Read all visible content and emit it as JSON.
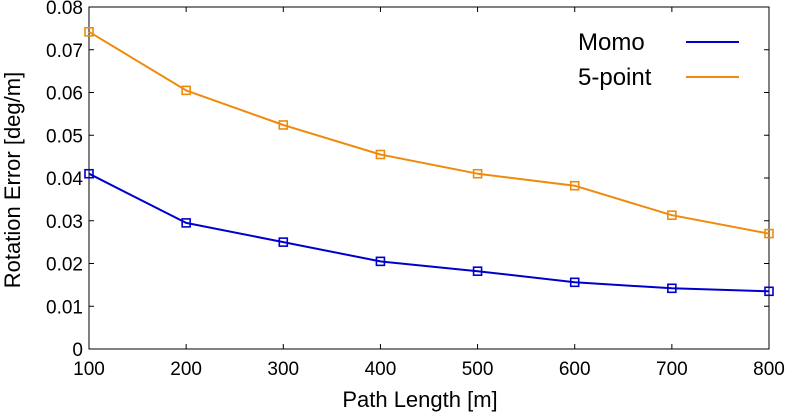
{
  "chart_data": {
    "type": "line",
    "title": "",
    "xlabel": "Path Length [m]",
    "ylabel": "Rotation Error [deg/m]",
    "x": [
      100,
      200,
      300,
      400,
      500,
      600,
      700,
      800
    ],
    "xlim": [
      100,
      800
    ],
    "ylim": [
      0,
      0.08
    ],
    "xticks": [
      "100",
      "200",
      "300",
      "400",
      "500",
      "600",
      "700",
      "800"
    ],
    "yticks": [
      "0",
      "0.01",
      "0.02",
      "0.03",
      "0.04",
      "0.05",
      "0.06",
      "0.07",
      "0.08"
    ],
    "grid": false,
    "legend_position": "top-right",
    "marker": "square",
    "series": [
      {
        "name": "Momo",
        "color": "#0000cc",
        "values": [
          0.041,
          0.0295,
          0.025,
          0.0205,
          0.0182,
          0.0156,
          0.0142,
          0.0135
        ]
      },
      {
        "name": "5-point",
        "color": "#f08a0c",
        "values": [
          0.0742,
          0.0605,
          0.0524,
          0.0455,
          0.041,
          0.0382,
          0.0313,
          0.027
        ]
      }
    ]
  }
}
